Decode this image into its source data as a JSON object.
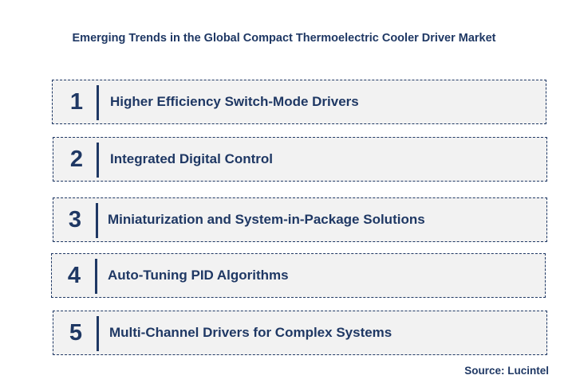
{
  "title": "Emerging Trends in the Global Compact Thermoelectric Cooler Driver Market",
  "trends": [
    {
      "number": "1",
      "label": "Higher Efficiency Switch-Mode Drivers"
    },
    {
      "number": "2",
      "label": "Integrated Digital Control"
    },
    {
      "number": "3",
      "label": "Miniaturization and System-in-Package Solutions"
    },
    {
      "number": "4",
      "label": "Auto-Tuning PID Algorithms"
    },
    {
      "number": "5",
      "label": "Multi-Channel Drivers for Complex Systems"
    }
  ],
  "source": "Source: Lucintel",
  "colors": {
    "text": "#1f3864",
    "box_fill": "#f2f2f2",
    "box_border": "#1f3864"
  }
}
